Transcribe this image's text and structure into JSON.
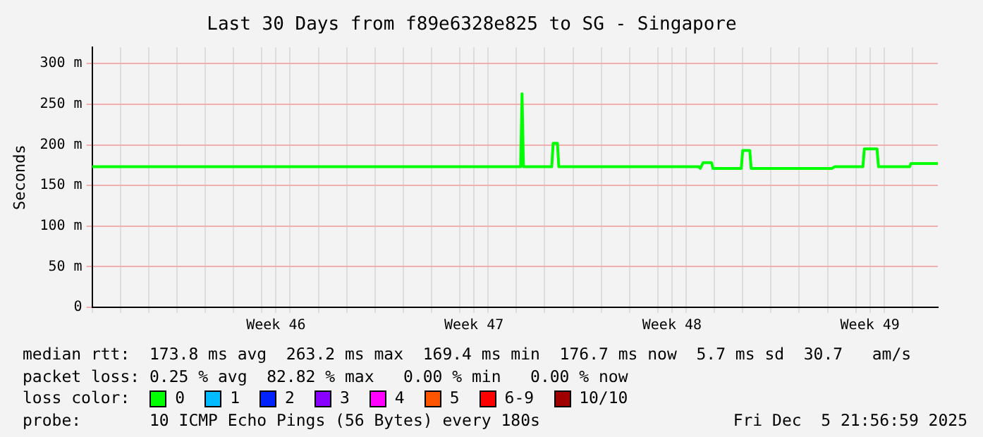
{
  "chart_data": {
    "type": "line",
    "title": "Last 30 Days from f89e6328e825 to SG - Singapore",
    "ylabel": "Seconds",
    "x": [
      "2025-11-07T00:00",
      "2025-11-22T03:36",
      "2025-11-22T04:48",
      "2025-11-22T06:00",
      "2025-11-23T06:00",
      "2025-11-23T07:12",
      "2025-11-23T10:48",
      "2025-11-23T12:00",
      "2025-11-28T10:48",
      "2025-11-28T12:00",
      "2025-11-28T14:24",
      "2025-11-28T21:36",
      "2025-11-28T22:48",
      "2025-11-29T22:48",
      "2025-11-30T00:00",
      "2025-11-30T06:00",
      "2025-11-30T07:12",
      "2025-12-03T03:36",
      "2025-12-03T06:00",
      "2025-12-04T06:00",
      "2025-12-04T07:12",
      "2025-12-04T18:00",
      "2025-12-04T19:12",
      "2025-12-05T21:36",
      "2025-12-05T22:48",
      "2025-12-06T21:36"
    ],
    "series": [
      {
        "name": "0",
        "color": "#00ff00",
        "values": [
          173,
          173,
          263,
          173,
          173,
          202,
          202,
          173,
          173,
          171,
          178,
          178,
          171,
          171,
          193,
          193,
          171,
          171,
          173,
          173,
          195,
          195,
          173,
          173,
          177,
          177
        ]
      },
      {
        "name": "1",
        "color": "#00bbff",
        "values": [
          null,
          null,
          null,
          null,
          null,
          null,
          null,
          null,
          null,
          null,
          null,
          null,
          null,
          null,
          null,
          null,
          null,
          null,
          null,
          null,
          null,
          null,
          null,
          null,
          null,
          null
        ]
      },
      {
        "name": "2",
        "color": "#0022ff",
        "values": [
          null,
          null,
          null,
          null,
          null,
          null,
          null,
          null,
          null,
          null,
          null,
          null,
          null,
          null,
          null,
          null,
          null,
          null,
          null,
          null,
          null,
          null,
          null,
          null,
          null,
          null
        ]
      },
      {
        "name": "3",
        "color": "#8a00ff",
        "values": [
          null,
          null,
          null,
          null,
          null,
          null,
          null,
          null,
          null,
          null,
          null,
          null,
          null,
          null,
          null,
          null,
          null,
          null,
          null,
          null,
          null,
          null,
          null,
          null,
          null,
          null
        ]
      },
      {
        "name": "4",
        "color": "#ff00ff",
        "values": [
          null,
          null,
          null,
          null,
          null,
          null,
          null,
          null,
          null,
          null,
          null,
          null,
          null,
          null,
          null,
          null,
          null,
          null,
          null,
          null,
          null,
          null,
          null,
          null,
          null,
          null
        ]
      },
      {
        "name": "5",
        "color": "#ff5500",
        "values": [
          null,
          null,
          null,
          null,
          null,
          null,
          null,
          null,
          null,
          null,
          null,
          null,
          null,
          null,
          null,
          null,
          null,
          null,
          null,
          null,
          null,
          null,
          null,
          null,
          null,
          null
        ]
      },
      {
        "name": "6-9",
        "color": "#ff0000",
        "values": [
          null,
          null,
          null,
          null,
          null,
          null,
          null,
          null,
          null,
          null,
          null,
          null,
          null,
          null,
          null,
          null,
          null,
          null,
          null,
          null,
          null,
          null,
          null,
          null,
          null,
          null
        ]
      },
      {
        "name": "10/10",
        "color": "#a10000",
        "values": [
          null,
          null,
          null,
          null,
          null,
          null,
          null,
          null,
          null,
          null,
          null,
          null,
          null,
          null,
          null,
          null,
          null,
          null,
          null,
          null,
          null,
          null,
          null,
          null,
          null,
          null
        ]
      }
    ],
    "legend_title": "loss color:",
    "legend": "bottom",
    "grid": true,
    "marker": "none",
    "line_style": "solid",
    "xlim": [
      "2025-11-07T00:00",
      "2025-12-06T21:36"
    ],
    "xticks": [
      {
        "value": "2025-11-07T00:00",
        "label": null
      },
      {
        "value": "2025-11-08T00:00",
        "label": null
      },
      {
        "value": "2025-11-09T00:00",
        "label": null
      },
      {
        "value": "2025-11-10T00:00",
        "label": null
      },
      {
        "value": "2025-11-11T00:00",
        "label": null
      },
      {
        "value": "2025-11-12T00:00",
        "label": null
      },
      {
        "value": "2025-11-13T00:00",
        "label": null
      },
      {
        "value": "2025-11-13T12:00",
        "label": "Week 46"
      },
      {
        "value": "2025-11-14T00:00",
        "label": null
      },
      {
        "value": "2025-11-15T00:00",
        "label": null
      },
      {
        "value": "2025-11-16T00:00",
        "label": null
      },
      {
        "value": "2025-11-17T00:00",
        "label": null
      },
      {
        "value": "2025-11-18T00:00",
        "label": null
      },
      {
        "value": "2025-11-19T00:00",
        "label": null
      },
      {
        "value": "2025-11-20T00:00",
        "label": null
      },
      {
        "value": "2025-11-20T12:00",
        "label": "Week 47"
      },
      {
        "value": "2025-11-21T00:00",
        "label": null
      },
      {
        "value": "2025-11-22T00:00",
        "label": null
      },
      {
        "value": "2025-11-23T00:00",
        "label": null
      },
      {
        "value": "2025-11-24T00:00",
        "label": null
      },
      {
        "value": "2025-11-25T00:00",
        "label": null
      },
      {
        "value": "2025-11-26T00:00",
        "label": null
      },
      {
        "value": "2025-11-27T00:00",
        "label": null
      },
      {
        "value": "2025-11-27T12:00",
        "label": "Week 48"
      },
      {
        "value": "2025-11-28T00:00",
        "label": null
      },
      {
        "value": "2025-11-29T00:00",
        "label": null
      },
      {
        "value": "2025-11-30T00:00",
        "label": null
      },
      {
        "value": "2025-12-01T00:00",
        "label": null
      },
      {
        "value": "2025-12-02T00:00",
        "label": null
      },
      {
        "value": "2025-12-03T00:00",
        "label": null
      },
      {
        "value": "2025-12-04T00:00",
        "label": null
      },
      {
        "value": "2025-12-04T12:00",
        "label": "Week 49"
      },
      {
        "value": "2025-12-05T00:00",
        "label": null
      },
      {
        "value": "2025-12-06T00:00",
        "label": null
      }
    ],
    "ylim": [
      0,
      320
    ],
    "yticks": [
      {
        "value": 0,
        "label": "0"
      },
      {
        "value": 50,
        "label": "50 m"
      },
      {
        "value": 100,
        "label": "100 m"
      },
      {
        "value": 150,
        "label": "150 m"
      },
      {
        "value": 200,
        "label": "200 m"
      },
      {
        "value": 250,
        "label": "250 m"
      },
      {
        "value": 300,
        "label": "300 m"
      }
    ],
    "annotations": [
      "median rtt:  173.8 ms avg  263.2 ms max  169.4 ms min  176.7 ms now  5.7 ms sd  30.7   am/s",
      "packet loss: 0.25 % avg  82.82 % max   0.00 % min   0.00 % now",
      "probe:       10 ICMP Echo Pings (56 Bytes) every 180s",
      "Fri Dec  5 21:56:59 2025"
    ]
  }
}
